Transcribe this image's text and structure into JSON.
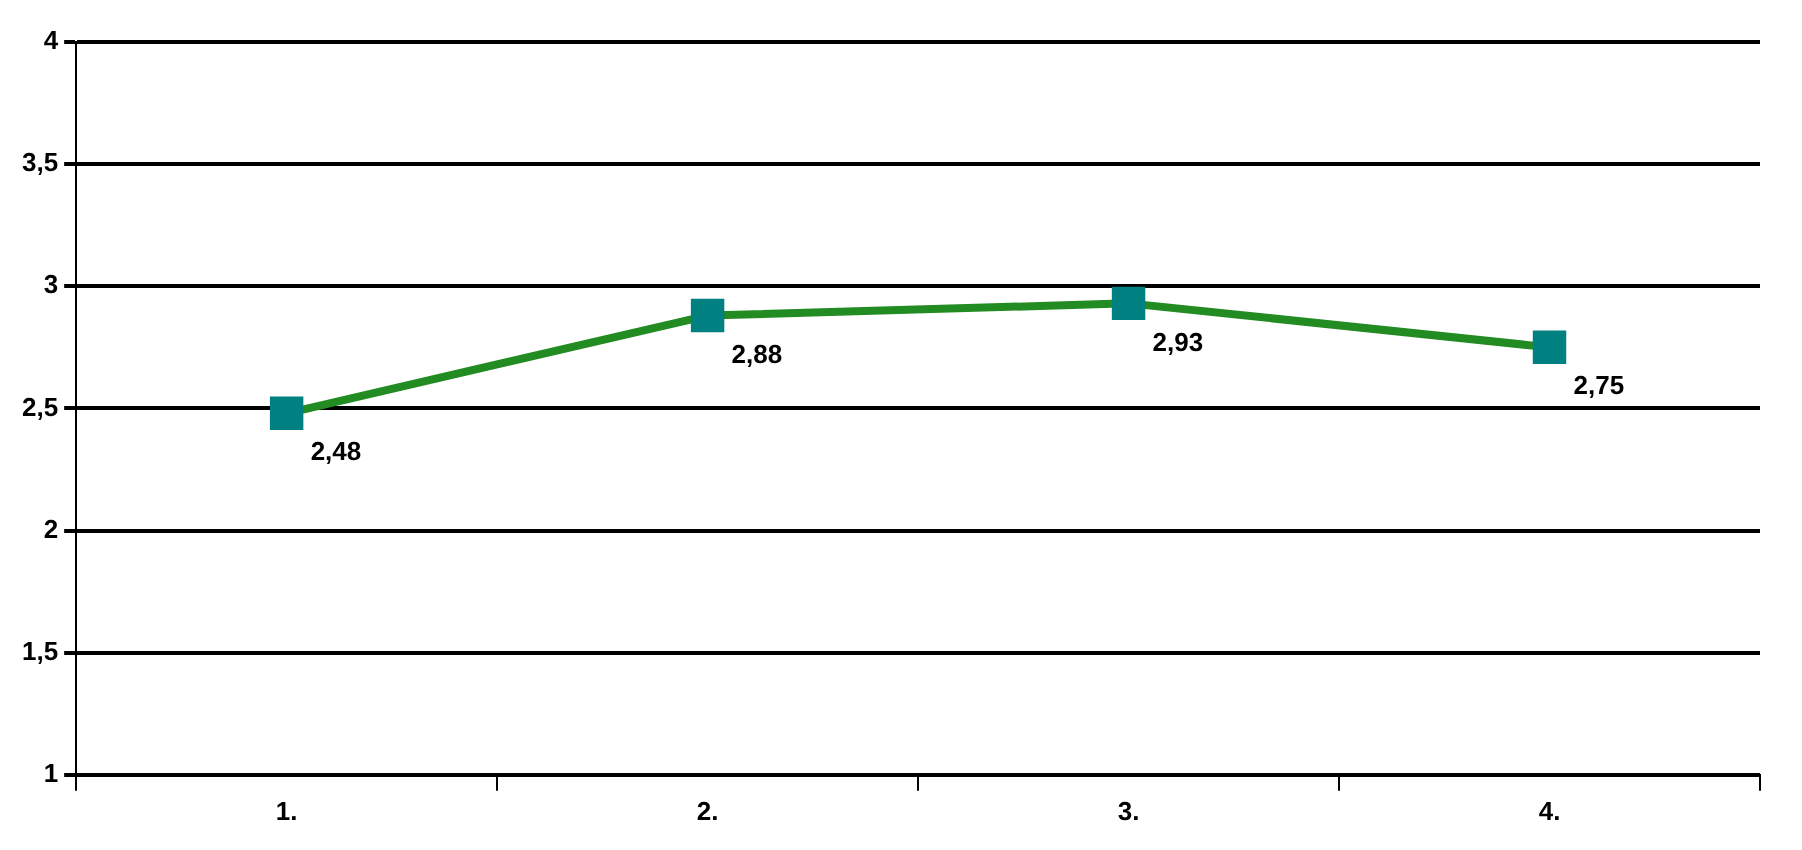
{
  "chart_data": {
    "type": "line",
    "categories": [
      "1.",
      "2.",
      "3.",
      "4."
    ],
    "series": [
      {
        "color": "#228b22",
        "colors": [
          "#008080",
          "#008080",
          "#008080",
          "#008080"
        ],
        "values": [
          2.48,
          2.88,
          2.93,
          2.75
        ],
        "value_labels": [
          "2,48",
          "2,88",
          "2,93",
          "2,75"
        ]
      }
    ],
    "ylim": [
      1,
      4
    ],
    "yticks": [
      1,
      {
        "value": 1.5,
        "label": "1,5"
      },
      2,
      {
        "value": 2.5,
        "label": "2,5"
      },
      3,
      {
        "value": 3.5,
        "label": "3,5"
      },
      4
    ],
    "grid": "y",
    "legend": false,
    "marker": "square",
    "line_style": "solid"
  }
}
